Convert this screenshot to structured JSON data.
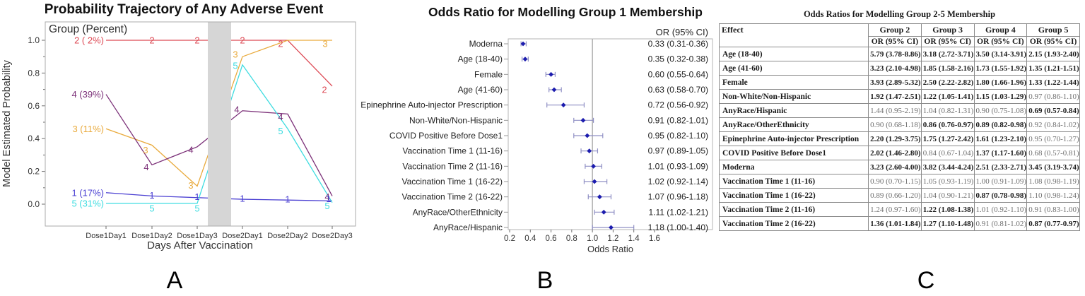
{
  "captions": {
    "a": "A",
    "b": "B",
    "c": "C"
  },
  "chart_data": [
    {
      "type": "line",
      "panel": "A",
      "title": "Probability Trajectory of Any Adverse Event",
      "xlabel": "Days After Vaccination",
      "ylabel": "Model Estimated Probability",
      "legend_title": "Group (Percent)",
      "categories": [
        "Dose1Day1",
        "Dose1Day2",
        "Dose1Day3",
        "Dose2Day1",
        "Dose2Day2",
        "Dose2Day3"
      ],
      "ytick_labels": [
        "0.0",
        "0.2",
        "0.4",
        "0.6",
        "0.8",
        "1.0"
      ],
      "yticks": [
        0.0,
        0.2,
        0.4,
        0.6,
        0.8,
        1.0
      ],
      "minor_ytick_step": 0.1,
      "ylim": [
        -0.13,
        1.11
      ],
      "grid": false,
      "gap_band": {
        "between": [
          "Dose1Day3",
          "Dose2Day1"
        ],
        "color": "#d6d6d6"
      },
      "series": [
        {
          "group": "2",
          "legend_label": "2 ( 2%)",
          "color": "#dd4a55",
          "values": [
            1.0,
            1.0,
            1.0,
            1.0,
            1.0,
            0.72
          ],
          "label_offsets": [
            null,
            [
              0,
              0
            ],
            [
              0,
              0
            ],
            [
              0,
              0
            ],
            [
              -10,
              5
            ],
            [
              -11,
              5
            ]
          ]
        },
        {
          "group": "3",
          "legend_label": "3 (11%)",
          "color": "#e9aa3c",
          "values": [
            0.46,
            0.36,
            0.11,
            0.9,
            1.0,
            1.0
          ],
          "label_offsets": [
            null,
            [
              -9,
              7
            ],
            [
              -9,
              -1
            ],
            [
              -10,
              -3
            ],
            null,
            [
              -10,
              5
            ]
          ]
        },
        {
          "group": "4",
          "legend_label": "4 (39%)",
          "color": "#7c3179",
          "values": [
            0.67,
            0.24,
            0.35,
            0.57,
            0.55,
            0.05
          ],
          "label_offsets": [
            null,
            [
              -8,
              3
            ],
            [
              -9,
              4
            ],
            [
              -8,
              -2
            ],
            [
              -10,
              4
            ],
            [
              -7,
              1
            ]
          ]
        },
        {
          "group": "1",
          "legend_label": "1 (17%)",
          "color": "#4a3fd2",
          "values": [
            0.07,
            0.05,
            0.04,
            0.03,
            0.025,
            0.02
          ],
          "label_offsets": [
            null,
            [
              0,
              -1
            ],
            [
              0,
              -1
            ],
            [
              0,
              -1
            ],
            [
              0,
              -1
            ],
            [
              -5,
              -3
            ]
          ]
        },
        {
          "group": "5",
          "legend_label": "5 (31%)",
          "color": "#3edce0",
          "values": [
            0.005,
            0.005,
            0.005,
            0.85,
            0.46,
            0.01
          ],
          "label_offsets": [
            null,
            [
              0,
              7
            ],
            [
              0,
              7
            ],
            [
              -10,
              1
            ],
            [
              -10,
              3
            ],
            [
              -7,
              5
            ]
          ]
        }
      ]
    },
    {
      "type": "forest",
      "panel": "B",
      "title": "Odds Ratio for Modelling Group 1 Membership",
      "xlabel": "Odds Ratio",
      "value_column_header": "OR (95% CI)",
      "xticks": [
        0.2,
        0.4,
        0.6,
        0.8,
        1.0,
        1.2,
        1.4,
        1.6
      ],
      "xtick_labels": [
        "0.2",
        "0.4",
        "0.6",
        "0.8",
        "1.0",
        "1.2",
        "1.4",
        "1.6"
      ],
      "refline": 1.0,
      "marker_color": "#1c1cae",
      "ci_color": "#8f8fc4",
      "rows": [
        {
          "label": "Moderna",
          "or": 0.33,
          "lo": 0.31,
          "hi": 0.36,
          "text": "0.33 (0.31-0.36)"
        },
        {
          "label": "Age (18-40)",
          "or": 0.35,
          "lo": 0.32,
          "hi": 0.38,
          "text": "0.35 (0.32-0.38)"
        },
        {
          "label": "Female",
          "or": 0.6,
          "lo": 0.55,
          "hi": 0.64,
          "text": "0.60 (0.55-0.64)"
        },
        {
          "label": "Age (41-60)",
          "or": 0.63,
          "lo": 0.58,
          "hi": 0.7,
          "text": "0.63 (0.58-0.70)"
        },
        {
          "label": "Epinephrine Auto-injector Prescription",
          "or": 0.72,
          "lo": 0.56,
          "hi": 0.92,
          "text": "0.72 (0.56-0.92)"
        },
        {
          "label": "Non-White/Non-Hispanic",
          "or": 0.91,
          "lo": 0.82,
          "hi": 1.01,
          "text": "0.91 (0.82-1.01)"
        },
        {
          "label": "COVID Positive Before Dose1",
          "or": 0.95,
          "lo": 0.82,
          "hi": 1.1,
          "text": "0.95 (0.82-1.10)"
        },
        {
          "label": "Vaccination Time 1 (11-16)",
          "or": 0.97,
          "lo": 0.89,
          "hi": 1.05,
          "text": "0.97 (0.89-1.05)"
        },
        {
          "label": "Vaccination Time 2 (11-16)",
          "or": 1.01,
          "lo": 0.93,
          "hi": 1.09,
          "text": "1.01 (0.93-1.09)"
        },
        {
          "label": "Vaccination Time 1 (16-22)",
          "or": 1.02,
          "lo": 0.92,
          "hi": 1.14,
          "text": "1.02 (0.92-1.14)"
        },
        {
          "label": "Vaccination Time 2 (16-22)",
          "or": 1.07,
          "lo": 0.96,
          "hi": 1.18,
          "text": "1.07 (0.96-1.18)"
        },
        {
          "label": "AnyRace/OtherEthnicity",
          "or": 1.11,
          "lo": 1.02,
          "hi": 1.21,
          "text": "1.11 (1.02-1.21)"
        },
        {
          "label": "AnyRace/Hispanic",
          "or": 1.18,
          "lo": 1.0,
          "hi": 1.4,
          "text": "1.18 (1.00-1.40)"
        }
      ]
    },
    {
      "type": "table",
      "panel": "C",
      "title": "Odds Ratios for Modelling Group 2-5 Membership",
      "effect_header": "Effect",
      "group_headers": [
        "Group 2",
        "Group 3",
        "Group 4",
        "Group 5"
      ],
      "or_header": "OR (95% CI)",
      "rows": [
        {
          "effect": "Age (18-40)",
          "cells": [
            {
              "text": "5.79 (3.78-8.86)",
              "bold": true
            },
            {
              "text": "3.18 (2.72-3.71)",
              "bold": true
            },
            {
              "text": "3.50 (3.14-3.91)",
              "bold": true
            },
            {
              "text": "2.15 (1.93-2.40)",
              "bold": true
            }
          ]
        },
        {
          "effect": "Age (41-60)",
          "cells": [
            {
              "text": "3.23 (2.10-4.98)",
              "bold": true
            },
            {
              "text": "1.85 (1.58-2.16)",
              "bold": true
            },
            {
              "text": "1.73 (1.55-1.92)",
              "bold": true
            },
            {
              "text": "1.35 (1.21-1.51)",
              "bold": true
            }
          ]
        },
        {
          "effect": "Female",
          "cells": [
            {
              "text": "3.93 (2.89-5.32)",
              "bold": true
            },
            {
              "text": "2.50 (2.22-2.82)",
              "bold": true
            },
            {
              "text": "1.80 (1.66-1.96)",
              "bold": true
            },
            {
              "text": "1.33 (1.22-1.44)",
              "bold": true
            }
          ]
        },
        {
          "effect": "Non-White/Non-Hispanic",
          "cells": [
            {
              "text": "1.92 (1.47-2.51)",
              "bold": true
            },
            {
              "text": "1.22 (1.05-1.41)",
              "bold": true
            },
            {
              "text": "1.15 (1.03-1.29)",
              "bold": true
            },
            {
              "text": "0.97 (0.86-1.10)",
              "bold": false
            }
          ]
        },
        {
          "effect": "AnyRace/Hispanic",
          "cells": [
            {
              "text": "1.44 (0.95-2.19)",
              "bold": false
            },
            {
              "text": "1.04 (0.82-1.31)",
              "bold": false
            },
            {
              "text": "0.90 (0.75-1.08)",
              "bold": false
            },
            {
              "text": "0.69 (0.57-0.84)",
              "bold": true
            }
          ]
        },
        {
          "effect": "AnyRace/OtherEthnicity",
          "cells": [
            {
              "text": "0.90 (0.68-1.18)",
              "bold": false
            },
            {
              "text": "0.86 (0.76-0.97)",
              "bold": true
            },
            {
              "text": "0.89 (0.82-0.98)",
              "bold": true
            },
            {
              "text": "0.92 (0.84-1.02)",
              "bold": false
            }
          ]
        },
        {
          "effect": "Epinephrine Auto-injector Prescription",
          "cells": [
            {
              "text": "2.20 (1.29-3.75)",
              "bold": true
            },
            {
              "text": "1.75 (1.27-2.42)",
              "bold": true
            },
            {
              "text": "1.61 (1.23-2.10)",
              "bold": true
            },
            {
              "text": "0.95 (0.70-1.27)",
              "bold": false
            }
          ]
        },
        {
          "effect": "COVID Positive Before Dose1",
          "cells": [
            {
              "text": "2.02 (1.46-2.80)",
              "bold": true
            },
            {
              "text": "0.84 (0.67-1.04)",
              "bold": false
            },
            {
              "text": "1.37 (1.17-1.60)",
              "bold": true
            },
            {
              "text": "0.68 (0.57-0.81)",
              "bold": false
            }
          ]
        },
        {
          "effect": "Moderna",
          "cells": [
            {
              "text": "3.23 (2.60-4.00)",
              "bold": true
            },
            {
              "text": "3.82 (3.44-4.24)",
              "bold": true
            },
            {
              "text": "2.51 (2.33-2.71)",
              "bold": true
            },
            {
              "text": "3.45 (3.19-3.74)",
              "bold": true
            }
          ]
        },
        {
          "effect": "Vaccination Time 1 (11-16)",
          "cells": [
            {
              "text": "0.90 (0.70-1.15)",
              "bold": false
            },
            {
              "text": "1.05 (0.93-1.19)",
              "bold": false
            },
            {
              "text": "1.00 (0.91-1.09)",
              "bold": false
            },
            {
              "text": "1.08 (0.98-1.19)",
              "bold": false
            }
          ]
        },
        {
          "effect": "Vaccination Time 1 (16-22)",
          "cells": [
            {
              "text": "0.89 (0.66-1.20)",
              "bold": false
            },
            {
              "text": "1.04 (0.90-1.21)",
              "bold": false
            },
            {
              "text": "0.87 (0.78-0.98)",
              "bold": true
            },
            {
              "text": "1.10 (0.98-1.24)",
              "bold": false
            }
          ]
        },
        {
          "effect": "Vaccination Time 2 (11-16)",
          "cells": [
            {
              "text": "1.24 (0.97-1.60)",
              "bold": false
            },
            {
              "text": "1.22 (1.08-1.38)",
              "bold": true
            },
            {
              "text": "1.01 (0.92-1.10)",
              "bold": false
            },
            {
              "text": "0.91 (0.83-1.00)",
              "bold": false
            }
          ]
        },
        {
          "effect": "Vaccination Time 2 (16-22)",
          "cells": [
            {
              "text": "1.36 (1.01-1.84)",
              "bold": true
            },
            {
              "text": "1.27 (1.10-1.48)",
              "bold": true
            },
            {
              "text": "0.91 (0.81-1.02)",
              "bold": false
            },
            {
              "text": "0.87 (0.77-0.97)",
              "bold": true
            }
          ]
        }
      ]
    }
  ]
}
